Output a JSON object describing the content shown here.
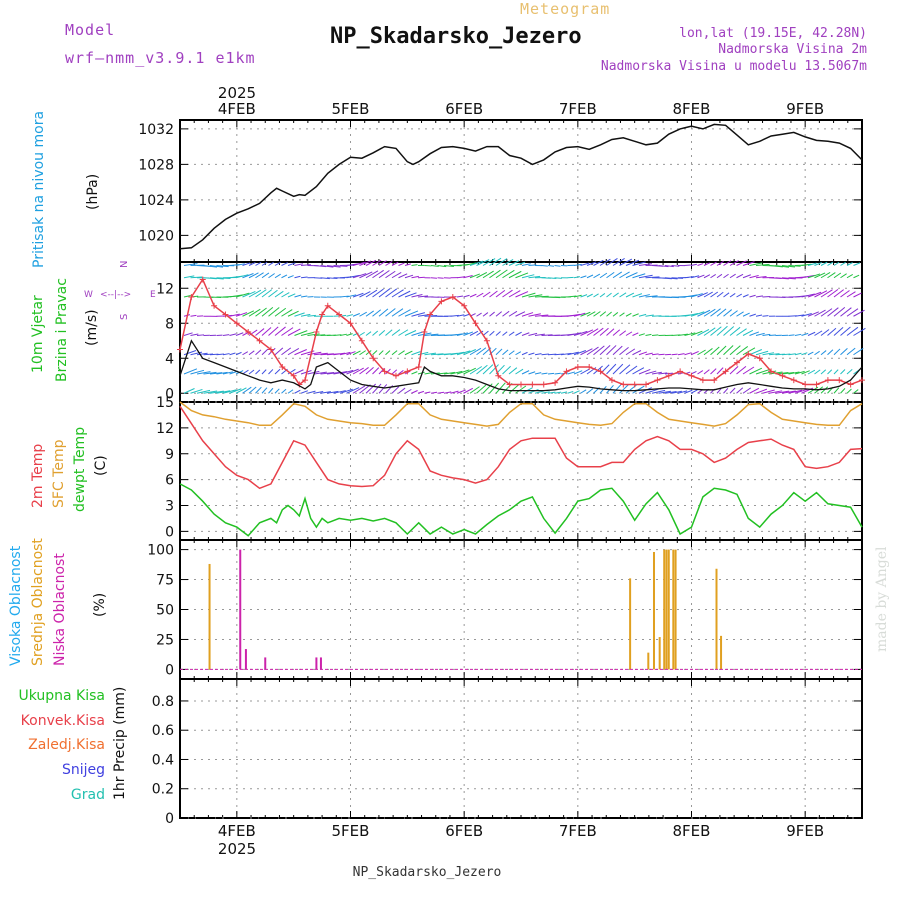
{
  "header": {
    "model_label": "Model",
    "model_name": "wrf—nmm_v3.9.1 e1km",
    "meteogram": "Meteogram",
    "station": "NP_Skadarsko_Jezero",
    "lonlat": "lon,lat (19.15E, 42.28N)",
    "elev": "Nadmorska Visina 2m",
    "elev_model": "Nadmorska Visina u modelu 13.5067m",
    "footer": "NP_Skadarsko_Jezero",
    "credit": "made by Angel"
  },
  "time_axis": {
    "year": "2025",
    "dates": [
      "4FEB",
      "5FEB",
      "6FEB",
      "7FEB",
      "8FEB",
      "9FEB"
    ],
    "range_days": [
      3.5,
      9.5
    ]
  },
  "colors": {
    "pressure": "#1fa0e0",
    "temp2m": "#e8404a",
    "sfc": "#e0a030",
    "dewpt": "#22c022",
    "vis": "#22aaee",
    "sred": "#e0a020",
    "nis": "#cc22aa",
    "wind_arrows": "#8020d0",
    "title_purple": "#a040c0",
    "meteogram_gold": "#e8c070"
  },
  "chart_data": [
    {
      "type": "line",
      "name": "pressure",
      "ylabel_1": "Pritisak na nivou mora",
      "ylabel_2": "(hPa)",
      "ylim": [
        1017,
        1033
      ],
      "yticks": [
        "1020",
        "1024",
        "1028",
        "1032"
      ],
      "grid": true,
      "series": [
        {
          "x": [
            3.5,
            3.6,
            3.7,
            3.8,
            3.9,
            4.0,
            4.1,
            4.2,
            4.3,
            4.35,
            4.4,
            4.5,
            4.55,
            4.6,
            4.7,
            4.8,
            4.9,
            5.0,
            5.1,
            5.2,
            5.3,
            5.4,
            5.5,
            5.55,
            5.6,
            5.7,
            5.8,
            5.9,
            6.0,
            6.1,
            6.2,
            6.3,
            6.4,
            6.5,
            6.6,
            6.7,
            6.8,
            6.9,
            7.0,
            7.1,
            7.2,
            7.3,
            7.4,
            7.5,
            7.6,
            7.7,
            7.8,
            7.9,
            8.0,
            8.1,
            8.2,
            8.3,
            8.4,
            8.5,
            8.6,
            8.7,
            8.8,
            8.9,
            9.0,
            9.1,
            9.2,
            9.3,
            9.4,
            9.5
          ],
          "values": [
            1018.5,
            1018.6,
            1019.5,
            1020.8,
            1021.8,
            1022.5,
            1023.0,
            1023.6,
            1024.8,
            1025.3,
            1025.0,
            1024.4,
            1024.6,
            1024.5,
            1025.5,
            1027.0,
            1028.0,
            1028.8,
            1028.7,
            1029.3,
            1030.0,
            1029.8,
            1028.3,
            1028.0,
            1028.3,
            1029.2,
            1029.9,
            1030.0,
            1029.8,
            1029.5,
            1030.0,
            1030.0,
            1029.0,
            1028.7,
            1028.0,
            1028.5,
            1029.4,
            1029.9,
            1030.0,
            1029.7,
            1030.2,
            1030.8,
            1031.0,
            1030.6,
            1030.2,
            1030.4,
            1031.4,
            1032.0,
            1032.3,
            1032.0,
            1032.5,
            1032.4,
            1031.3,
            1030.2,
            1030.6,
            1031.2,
            1031.4,
            1031.6,
            1031.1,
            1030.7,
            1030.6,
            1030.4,
            1029.8,
            1028.5
          ]
        }
      ]
    },
    {
      "type": "line",
      "name": "wind",
      "ylabel_1": "10m Vjetar",
      "ylabel_2": "Brzina i Pravac",
      "ylabel_3": "(m/s)",
      "compass": "N",
      "compass_w": "W",
      "compass_e": "E",
      "compass_s": "S",
      "ylim": [
        -1,
        15
      ],
      "yticks": [
        "0",
        "4",
        "8",
        "12"
      ],
      "grid": true,
      "series": [
        {
          "name": "gust",
          "x": [
            3.5,
            3.6,
            3.7,
            3.8,
            3.9,
            4.0,
            4.1,
            4.2,
            4.3,
            4.4,
            4.5,
            4.55,
            4.6,
            4.7,
            4.75,
            4.8,
            4.9,
            5.0,
            5.1,
            5.2,
            5.3,
            5.4,
            5.5,
            5.6,
            5.65,
            5.7,
            5.8,
            5.9,
            6.0,
            6.1,
            6.2,
            6.3,
            6.4,
            6.5,
            6.6,
            6.7,
            6.8,
            6.9,
            7.0,
            7.1,
            7.2,
            7.3,
            7.4,
            7.5,
            7.6,
            7.7,
            7.8,
            7.9,
            8.0,
            8.1,
            8.2,
            8.3,
            8.4,
            8.5,
            8.6,
            8.7,
            8.8,
            8.9,
            9.0,
            9.1,
            9.2,
            9.3,
            9.4,
            9.5
          ],
          "values": [
            5,
            11,
            13,
            10,
            9,
            8,
            7,
            6,
            5,
            3,
            2,
            1,
            1.5,
            7,
            9,
            10,
            9,
            8,
            6,
            4,
            2.5,
            2,
            2.5,
            3,
            7,
            9,
            10.5,
            11,
            10,
            8,
            6,
            2,
            1,
            1,
            1,
            1,
            1.2,
            2.5,
            3,
            3,
            2.5,
            1.5,
            1,
            1,
            1,
            1.5,
            2,
            2.5,
            2,
            1.5,
            1.5,
            2.5,
            3.5,
            4.5,
            4,
            2.5,
            2,
            1.5,
            1,
            1,
            1.5,
            1.5,
            1,
            1.5
          ]
        },
        {
          "name": "speed",
          "x": [
            3.5,
            3.6,
            3.7,
            3.8,
            3.9,
            4.0,
            4.1,
            4.2,
            4.3,
            4.4,
            4.5,
            4.6,
            4.65,
            4.7,
            4.8,
            4.9,
            5.0,
            5.1,
            5.2,
            5.3,
            5.4,
            5.5,
            5.6,
            5.65,
            5.7,
            5.8,
            5.9,
            6.0,
            6.1,
            6.2,
            6.3,
            6.4,
            6.5,
            6.6,
            6.7,
            6.8,
            6.9,
            7.0,
            7.1,
            7.2,
            7.3,
            7.4,
            7.5,
            7.6,
            7.7,
            7.8,
            7.9,
            8.0,
            8.1,
            8.2,
            8.3,
            8.4,
            8.5,
            8.6,
            8.7,
            8.8,
            8.9,
            9.0,
            9.1,
            9.2,
            9.3,
            9.4,
            9.5
          ],
          "values": [
            2,
            6,
            4,
            3.5,
            3,
            2.5,
            2,
            1.5,
            1.2,
            1.5,
            1.2,
            0.5,
            1,
            3,
            3.5,
            2.5,
            1.5,
            1,
            0.8,
            0.6,
            0.8,
            1,
            1.2,
            3,
            2.5,
            2,
            2,
            1.8,
            1.5,
            1,
            0.5,
            0.3,
            0.3,
            0.3,
            0.3,
            0.4,
            0.6,
            0.8,
            0.7,
            0.5,
            0.4,
            0.3,
            0.3,
            0.4,
            0.5,
            0.6,
            0.6,
            0.5,
            0.4,
            0.4,
            0.7,
            1,
            1.2,
            1,
            0.8,
            0.6,
            0.5,
            0.5,
            0.4,
            0.5,
            0.8,
            1.5,
            3
          ]
        }
      ]
    },
    {
      "type": "line",
      "name": "temperature",
      "ylabel_1": "2m Temp",
      "ylabel_2": "SFC Temp",
      "ylabel_3": "dewpt Temp",
      "ylabel_4": "(C)",
      "ylim": [
        -1,
        15
      ],
      "yticks": [
        "0",
        "3",
        "6",
        "9",
        "12",
        "15"
      ],
      "grid": true,
      "series": [
        {
          "name": "2m",
          "x": [
            3.5,
            3.6,
            3.7,
            3.8,
            3.9,
            4.0,
            4.1,
            4.2,
            4.3,
            4.4,
            4.5,
            4.6,
            4.7,
            4.8,
            4.9,
            5.0,
            5.1,
            5.2,
            5.3,
            5.4,
            5.5,
            5.6,
            5.7,
            5.8,
            5.9,
            6.0,
            6.1,
            6.2,
            6.3,
            6.4,
            6.5,
            6.6,
            6.7,
            6.8,
            6.9,
            7.0,
            7.1,
            7.2,
            7.3,
            7.4,
            7.5,
            7.6,
            7.7,
            7.8,
            7.9,
            8.0,
            8.1,
            8.2,
            8.3,
            8.4,
            8.5,
            8.6,
            8.7,
            8.8,
            8.9,
            9.0,
            9.1,
            9.2,
            9.3,
            9.4,
            9.5
          ],
          "values": [
            14.5,
            12.5,
            10.5,
            9,
            7.5,
            6.5,
            6,
            5,
            5.5,
            8,
            10.5,
            10,
            8,
            6,
            5.5,
            5.3,
            5.2,
            5.3,
            6.5,
            9,
            10.5,
            9.5,
            7,
            6.5,
            6.2,
            6,
            5.6,
            6,
            7.5,
            9.5,
            10.5,
            10.8,
            10.8,
            10.8,
            8.5,
            7.5,
            7.5,
            7.5,
            8,
            8,
            9.5,
            10.5,
            11,
            10.5,
            9.5,
            9.5,
            9,
            8,
            8.5,
            9.5,
            10.3,
            10.5,
            10.7,
            10,
            9.5,
            7.5,
            7.3,
            7.5,
            8,
            9.5,
            9.6
          ]
        },
        {
          "name": "sfc",
          "x": [
            3.5,
            3.6,
            3.7,
            3.8,
            3.9,
            4.0,
            4.1,
            4.2,
            4.3,
            4.4,
            4.5,
            4.6,
            4.7,
            4.8,
            4.9,
            5.0,
            5.1,
            5.2,
            5.3,
            5.4,
            5.5,
            5.6,
            5.7,
            5.8,
            5.9,
            6.0,
            6.1,
            6.2,
            6.3,
            6.4,
            6.5,
            6.6,
            6.7,
            6.8,
            6.9,
            7.0,
            7.1,
            7.2,
            7.3,
            7.4,
            7.5,
            7.6,
            7.7,
            7.8,
            7.9,
            8.0,
            8.1,
            8.2,
            8.3,
            8.4,
            8.5,
            8.6,
            8.7,
            8.8,
            8.9,
            9.0,
            9.1,
            9.2,
            9.3,
            9.4,
            9.5
          ],
          "values": [
            15,
            14,
            13.5,
            13.3,
            13,
            12.8,
            12.6,
            12.3,
            12.3,
            13.5,
            14.8,
            14.5,
            13.5,
            13,
            12.8,
            12.6,
            12.5,
            12.3,
            12.3,
            13.5,
            14.8,
            14.8,
            13.5,
            13,
            12.8,
            12.6,
            12.4,
            12.2,
            12.4,
            13.8,
            14.8,
            14.8,
            13.5,
            13,
            12.8,
            12.6,
            12.4,
            12.3,
            12.5,
            13.8,
            14.8,
            14.8,
            13.8,
            13,
            12.8,
            12.6,
            12.4,
            12.2,
            12.5,
            13.5,
            14.7,
            14.8,
            13.8,
            13,
            12.8,
            12.6,
            12.4,
            12.3,
            12.3,
            14,
            14.8
          ]
        },
        {
          "name": "dewpt",
          "x": [
            3.5,
            3.6,
            3.7,
            3.8,
            3.9,
            4.0,
            4.1,
            4.2,
            4.3,
            4.35,
            4.4,
            4.45,
            4.5,
            4.55,
            4.6,
            4.65,
            4.7,
            4.75,
            4.8,
            4.9,
            5.0,
            5.1,
            5.2,
            5.3,
            5.4,
            5.5,
            5.6,
            5.7,
            5.8,
            5.9,
            6.0,
            6.1,
            6.2,
            6.3,
            6.4,
            6.5,
            6.6,
            6.7,
            6.8,
            6.9,
            7.0,
            7.1,
            7.2,
            7.3,
            7.4,
            7.5,
            7.6,
            7.7,
            7.8,
            7.9,
            8.0,
            8.1,
            8.2,
            8.3,
            8.4,
            8.5,
            8.6,
            8.7,
            8.8,
            8.9,
            9.0,
            9.1,
            9.2,
            9.3,
            9.4,
            9.5
          ],
          "values": [
            5.5,
            4.8,
            3.5,
            2,
            1,
            0.5,
            -0.5,
            1,
            1.5,
            1,
            2.5,
            3,
            2.5,
            1.8,
            3.8,
            1.5,
            0.5,
            1.5,
            1,
            1.5,
            1.3,
            1.5,
            1.2,
            1.5,
            1,
            -0.3,
            1,
            -0.3,
            0.5,
            -0.3,
            0.2,
            -0.3,
            0.8,
            1.8,
            2.5,
            3.5,
            4,
            1.5,
            -0.2,
            1.5,
            3.5,
            3.8,
            4.8,
            5,
            3.5,
            1.3,
            3.2,
            4.5,
            2.5,
            -0.3,
            0.5,
            4,
            5,
            4.8,
            4.3,
            1.5,
            0.5,
            2,
            3,
            4.5,
            3.5,
            4.5,
            3.2,
            3,
            2.8,
            0.5
          ]
        }
      ]
    },
    {
      "type": "bar",
      "name": "clouds",
      "ylabel_1": "Visoka Oblacnost",
      "ylabel_2": "Srednja Oblacnost",
      "ylabel_3": "Niska Oblacnost",
      "ylabel_4": "(%)",
      "ylim": [
        -8,
        108
      ],
      "yticks": [
        "0",
        "25",
        "50",
        "75",
        "100"
      ],
      "grid": true,
      "series": [
        {
          "name": "srednja",
          "x": [
            3.76,
            7.46,
            7.62,
            7.67,
            7.72,
            7.76,
            7.78,
            7.8,
            7.84,
            7.86,
            8.22,
            8.26
          ],
          "values": [
            88,
            76,
            14,
            98,
            27,
            100,
            100,
            100,
            100,
            100,
            84,
            28
          ]
        },
        {
          "name": "niska",
          "x": [
            4.03,
            4.08,
            4.25,
            4.7,
            4.74
          ],
          "values": [
            100,
            17,
            10,
            10,
            10
          ]
        }
      ]
    },
    {
      "type": "line",
      "name": "precip",
      "ylabel_1": "1hr Precip (mm)",
      "legend": [
        "Ukupna Kisa",
        "Konvek.Kisa",
        "Zaledj.Kisa",
        "Snijeg",
        "Grad"
      ],
      "ylim": [
        0,
        0.95
      ],
      "yticks": [
        "0",
        "0.2",
        "0.4",
        "0.6",
        "0.8"
      ],
      "grid": true,
      "series": []
    }
  ]
}
